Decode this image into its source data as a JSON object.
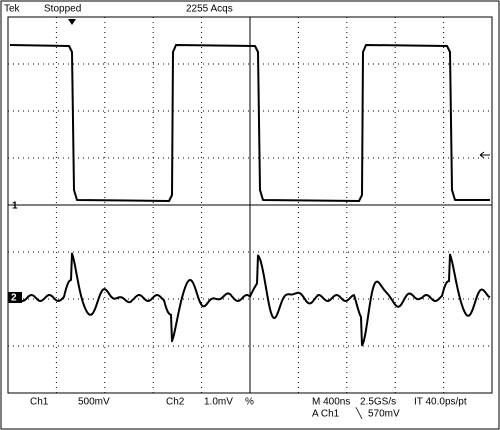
{
  "header": {
    "brand": "Tek",
    "state": "Stopped",
    "acquisitions": "2255 Acqs"
  },
  "markers": {
    "ch1": "1",
    "ch2": "2"
  },
  "footer": {
    "ch1_label": "Ch1",
    "ch1_scale": "500mV",
    "ch2_label": "Ch2",
    "ch2_scale": "1.0mV",
    "ch2_coupling": "%",
    "timebase": "M 400ns",
    "sample_rate": "2.5GS/s",
    "interpolation": "IT 40.0ps/pt",
    "trigger_source": "A Ch1",
    "trigger_slope": "╲",
    "trigger_level": "570mV"
  }
}
